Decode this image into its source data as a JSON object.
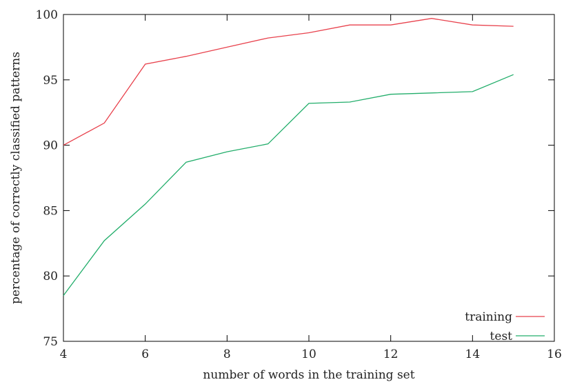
{
  "chart_data": {
    "type": "line",
    "title": "",
    "xlabel": "number of words in the training set",
    "ylabel": "percentage of correctly classified patterns",
    "xlim": [
      4,
      16
    ],
    "ylim": [
      75,
      100
    ],
    "xticks": [
      4,
      6,
      8,
      10,
      12,
      14,
      16
    ],
    "yticks": [
      75,
      80,
      85,
      90,
      95,
      100
    ],
    "grid": false,
    "legend_position": "bottom-right",
    "series": [
      {
        "name": "training",
        "color": "#e8414c",
        "x": [
          4,
          5,
          6,
          7,
          8,
          9,
          10,
          11,
          12,
          13,
          14,
          15
        ],
        "y": [
          90.0,
          91.7,
          96.2,
          96.8,
          97.5,
          98.2,
          98.6,
          99.2,
          99.2,
          99.7,
          99.2,
          99.1
        ]
      },
      {
        "name": "test",
        "color": "#21ad6a",
        "x": [
          4,
          5,
          6,
          7,
          8,
          9,
          10,
          11,
          12,
          13,
          14,
          15
        ],
        "y": [
          78.5,
          82.7,
          85.5,
          88.7,
          89.5,
          90.1,
          93.2,
          93.3,
          93.9,
          94.0,
          94.1,
          95.4
        ]
      }
    ]
  }
}
